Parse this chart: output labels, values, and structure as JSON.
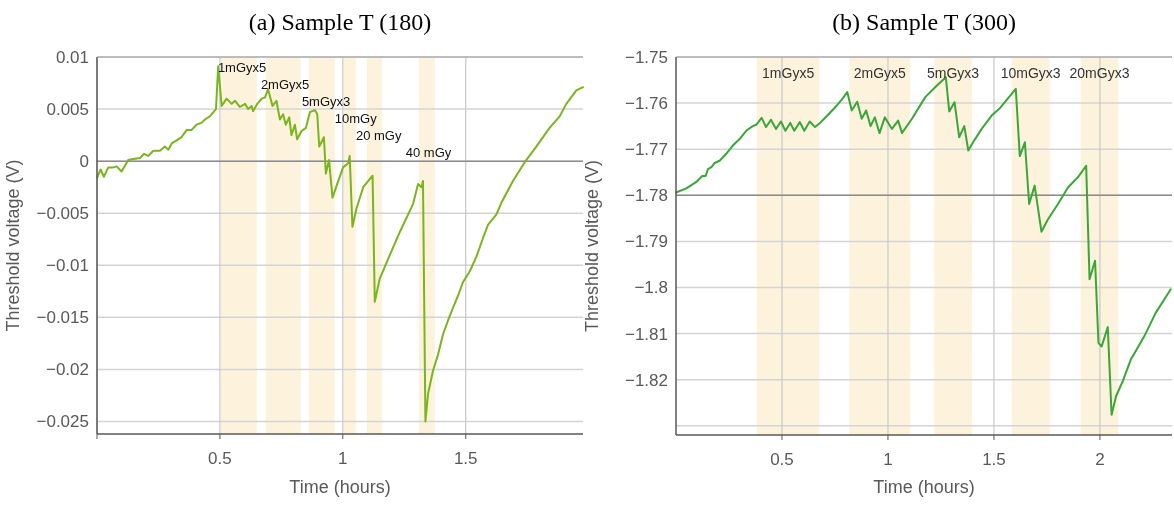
{
  "chart_data": [
    {
      "type": "line",
      "title": "(a) Sample T (180)",
      "xlabel": "Time (hours)",
      "ylabel": "Threshold voltage (V)",
      "xlim": [
        0,
        1.977
      ],
      "xticks": [
        {
          "value": 0,
          "label": null
        },
        0.5,
        1,
        1.5
      ],
      "ylim": [
        -0.0262,
        0.01
      ],
      "yticks": [
        0.01,
        0.005,
        0,
        -0.005,
        -0.01,
        -0.015,
        -0.02,
        -0.025
      ],
      "grid": true,
      "line_style": "solid",
      "series": [
        {
          "color": "#7ab41e",
          "x": [
            0,
            0.015,
            0.028,
            0.046,
            0.066,
            0.08,
            0.1,
            0.127,
            0.148,
            0.175,
            0.191,
            0.209,
            0.229,
            0.256,
            0.276,
            0.29,
            0.304,
            0.324,
            0.344,
            0.365,
            0.385,
            0.405,
            0.426,
            0.439,
            0.459,
            0.484,
            0.493,
            0.507,
            0.527,
            0.548,
            0.561,
            0.581,
            0.602,
            0.615,
            0.629,
            0.635,
            0.652,
            0.67,
            0.683,
            0.696,
            0.714,
            0.73,
            0.744,
            0.757,
            0.768,
            0.782,
            0.791,
            0.805,
            0.814,
            0.832,
            0.85,
            0.866,
            0.886,
            0.896,
            0.904,
            0.923,
            0.931,
            0.944,
            0.958,
            0.977,
            1.001,
            1.022,
            1.028,
            1.039,
            1.056,
            1.083,
            1.121,
            1.13,
            1.15,
            1.184,
            1.232,
            1.286,
            1.306,
            1.32,
            1.326,
            1.336,
            1.347,
            1.367,
            1.387,
            1.408,
            1.428,
            1.448,
            1.469,
            1.489,
            1.516,
            1.543,
            1.57,
            1.591,
            1.625,
            1.645,
            1.692,
            1.74,
            1.787,
            1.841,
            1.882,
            1.909,
            1.95,
            1.977
          ],
          "values": [
            -0.0016,
            -0.0008,
            -0.0015,
            -0.0006,
            -0.0006,
            -0.0005,
            -0.001,
            0.0001,
            0.0002,
            0.0003,
            0.0007,
            0.0005,
            0.001,
            0.001,
            0.0014,
            0.0011,
            0.0017,
            0.002,
            0.0023,
            0.003,
            0.003,
            0.0035,
            0.0037,
            0.004,
            0.0043,
            0.005,
            0.0091,
            0.0053,
            0.006,
            0.0055,
            0.0058,
            0.0052,
            0.0055,
            0.005,
            0.0053,
            0.0048,
            0.0055,
            0.006,
            0.0061,
            0.0069,
            0.0053,
            0.0058,
            0.004,
            0.0045,
            0.0035,
            0.0042,
            0.0025,
            0.0035,
            0.0021,
            0.0029,
            0.0032,
            0.0047,
            0.0049,
            0.0045,
            0.0014,
            0.0023,
            -0.0012,
            0.0001,
            -0.0035,
            -0.0022,
            -0.0006,
            -0.0002,
            0.0005,
            -0.0063,
            -0.0045,
            -0.0025,
            -0.0014,
            -0.0135,
            -0.0113,
            -0.0094,
            -0.0068,
            -0.0041,
            -0.0022,
            -0.0025,
            -0.0019,
            -0.025,
            -0.0223,
            -0.0201,
            -0.0186,
            -0.0166,
            -0.0153,
            -0.0141,
            -0.0129,
            -0.0116,
            -0.0106,
            -0.0092,
            -0.0074,
            -0.0061,
            -0.0051,
            -0.004,
            -0.0019,
            -0.0001,
            0.0014,
            0.0032,
            0.0043,
            0.0055,
            0.0068,
            0.0071
          ]
        }
      ],
      "ref_lines": [
        {
          "axis": "y",
          "value": 0,
          "color": "#8c8c8c"
        }
      ],
      "bands": [
        {
          "axis": "x",
          "from": 0.504,
          "to": 0.65,
          "label": "1mGyx5",
          "color": "#fdf3dc"
        },
        {
          "axis": "x",
          "from": 0.687,
          "to": 0.829,
          "label": "2mGyx5",
          "color": "#fdf3dc"
        },
        {
          "axis": "x",
          "from": 0.862,
          "to": 0.967,
          "label": "5mGyx3",
          "color": "#fdf3dc"
        },
        {
          "axis": "x",
          "from": 1.004,
          "to": 1.053,
          "label": "10mGy",
          "color": "#fdf3dc"
        },
        {
          "axis": "x",
          "from": 1.098,
          "to": 1.159,
          "label": "20 mGy",
          "color": "#fdf3dc"
        },
        {
          "axis": "x",
          "from": 1.309,
          "to": 1.374,
          "label": "40 mGy",
          "color": "#fdf3dc"
        }
      ]
    },
    {
      "type": "line",
      "title": "(b) Sample T (300)",
      "xlabel": "Time (hours)",
      "ylabel": "Threshold voltage (V)",
      "xlim": [
        0,
        2.34
      ],
      "xticks": [
        0.5,
        1,
        1.5,
        2
      ],
      "ylim": [
        -1.832,
        -1.75
      ],
      "yticks": [
        -1.75,
        -1.76,
        -1.77,
        -1.78,
        -1.79,
        -1.8,
        -1.81,
        -1.82,
        {
          "value": -1.83,
          "label": null
        }
      ],
      "grid": true,
      "line_style": "solid",
      "series": [
        {
          "color": "#3aa63a",
          "x": [
            0,
            0.049,
            0.096,
            0.124,
            0.14,
            0.151,
            0.167,
            0.182,
            0.206,
            0.237,
            0.268,
            0.3,
            0.331,
            0.362,
            0.378,
            0.404,
            0.425,
            0.448,
            0.472,
            0.495,
            0.516,
            0.539,
            0.558,
            0.584,
            0.605,
            0.631,
            0.656,
            0.675,
            0.722,
            0.761,
            0.785,
            0.808,
            0.829,
            0.855,
            0.876,
            0.897,
            0.918,
            0.938,
            0.96,
            0.985,
            1.019,
            1.048,
            1.066,
            1.113,
            1.176,
            1.231,
            1.273,
            1.289,
            1.314,
            1.336,
            1.36,
            1.379,
            1.403,
            1.442,
            1.489,
            1.528,
            1.603,
            1.622,
            1.646,
            1.666,
            1.692,
            1.724,
            1.755,
            1.802,
            1.849,
            1.896,
            1.935,
            1.951,
            1.977,
            1.993,
            2.008,
            2.037,
            2.055,
            2.076,
            2.107,
            2.146,
            2.209,
            2.263,
            2.334
          ],
          "values": [
            -1.7794,
            -1.7785,
            -1.7771,
            -1.7758,
            -1.7758,
            -1.7743,
            -1.7739,
            -1.773,
            -1.7725,
            -1.771,
            -1.7692,
            -1.7678,
            -1.766,
            -1.765,
            -1.7647,
            -1.7632,
            -1.7652,
            -1.7636,
            -1.7656,
            -1.764,
            -1.766,
            -1.7643,
            -1.766,
            -1.7641,
            -1.766,
            -1.764,
            -1.7652,
            -1.7645,
            -1.7623,
            -1.7604,
            -1.7591,
            -1.7576,
            -1.7616,
            -1.7597,
            -1.7634,
            -1.7616,
            -1.765,
            -1.7631,
            -1.7665,
            -1.7631,
            -1.7656,
            -1.7638,
            -1.7665,
            -1.7634,
            -1.7587,
            -1.7562,
            -1.7544,
            -1.7618,
            -1.7598,
            -1.7674,
            -1.765,
            -1.7703,
            -1.7684,
            -1.7656,
            -1.7627,
            -1.7611,
            -1.7569,
            -1.7715,
            -1.7685,
            -1.7819,
            -1.7779,
            -1.7879,
            -1.7852,
            -1.7819,
            -1.7783,
            -1.7761,
            -1.7736,
            -1.7982,
            -1.7942,
            -1.812,
            -1.8128,
            -1.8086,
            -1.8276,
            -1.8236,
            -1.8204,
            -1.8156,
            -1.8106,
            -1.8055,
            -1.8004
          ]
        }
      ],
      "ref_lines": [
        {
          "axis": "y",
          "value": -1.78,
          "color": "#8c8c8c"
        }
      ],
      "bands": [
        {
          "axis": "x",
          "from": 0.381,
          "to": 0.677,
          "label": "1mGyx5",
          "color": "#fdf3dc"
        },
        {
          "axis": "x",
          "from": 0.818,
          "to": 1.105,
          "label": "2mGyx5",
          "color": "#fdf3dc"
        },
        {
          "axis": "x",
          "from": 1.218,
          "to": 1.396,
          "label": "5mGyx3",
          "color": "#fdf3dc"
        },
        {
          "axis": "x",
          "from": 1.584,
          "to": 1.763,
          "label": "10mGyx3",
          "color": "#fdf3dc"
        },
        {
          "axis": "x",
          "from": 1.909,
          "to": 2.087,
          "label": "20mGyx3",
          "color": "#fdf3dc"
        }
      ]
    }
  ]
}
